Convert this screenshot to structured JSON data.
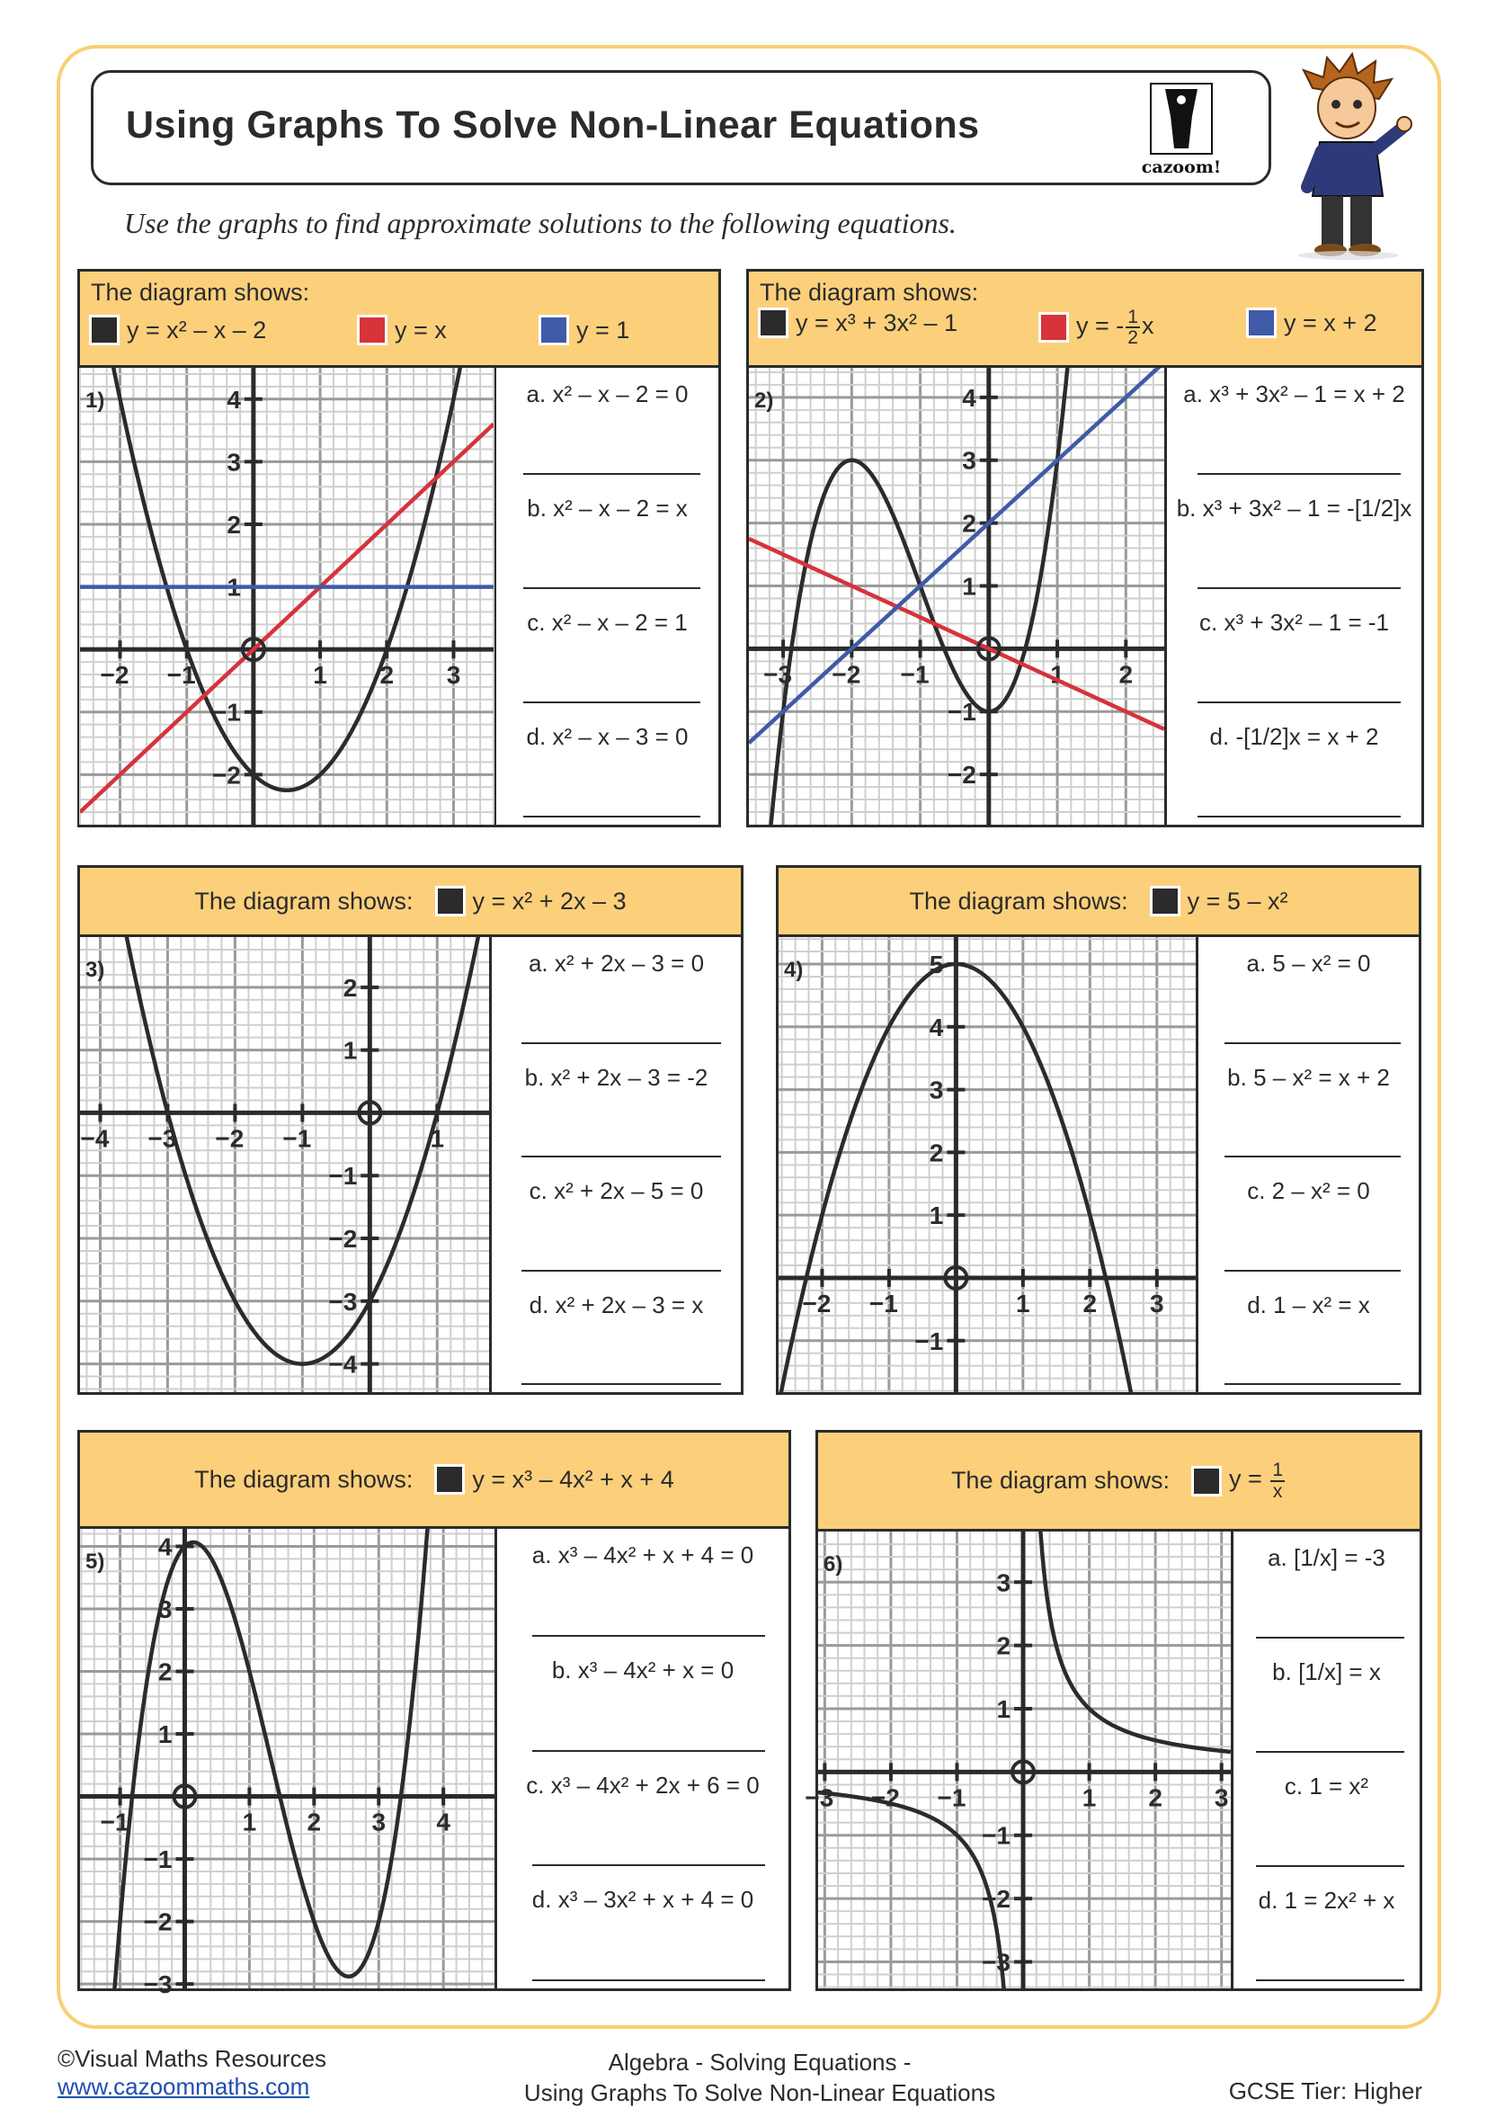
{
  "header": {
    "title": "Using Graphs To Solve Non-Linear Equations",
    "logo_text": "cazoom!",
    "instruction": "Use the graphs to find approximate solutions to the following equations."
  },
  "colors": {
    "border": "#f8cf73",
    "header_bg": "#fcd07b",
    "black_curve": "#2b2b2b",
    "red_line": "#d6333a",
    "blue_line": "#3f5ba8"
  },
  "panels": [
    {
      "number": "1)",
      "shows": "The diagram shows:",
      "legend": [
        "y = x² – x – 2",
        "y = x",
        "y = 1"
      ],
      "questions": [
        "a.  x² – x – 2 = 0",
        "b.  x² – x – 2 = x",
        "c.  x² – x – 2 = 1",
        "d.  x² – x – 3 = 0"
      ]
    },
    {
      "number": "2)",
      "shows": "The diagram shows:",
      "legend": [
        "y = x³ + 3x² – 1",
        "y = -[1/2]x",
        "y = x + 2"
      ],
      "questions": [
        "a. x³ + 3x² – 1 = x + 2",
        "b. x³ + 3x² – 1 = -[1/2]x",
        "c. x³ + 3x² – 1 = -1",
        "d. -[1/2]x = x + 2"
      ]
    },
    {
      "number": "3)",
      "shows": "The diagram shows:",
      "legend": [
        "y = x² + 2x – 3"
      ],
      "questions": [
        "a. x² + 2x – 3 = 0",
        "b. x² + 2x – 3 = -2",
        "c. x² + 2x – 5 = 0",
        "d. x² + 2x – 3 = x"
      ]
    },
    {
      "number": "4)",
      "shows": "The diagram shows:",
      "legend": [
        "y = 5 – x²"
      ],
      "questions": [
        "a.  5 – x² = 0",
        "b.  5 – x² = x + 2",
        "c.  2 – x² = 0",
        "d.  1 – x² = x"
      ]
    },
    {
      "number": "5)",
      "shows": "The diagram shows:",
      "legend": [
        "y = x³ – 4x² + x + 4"
      ],
      "questions": [
        "a. x³ – 4x² + x + 4 = 0",
        "b. x³ – 4x² + x = 0",
        "c. x³ – 4x² + 2x + 6 = 0",
        "d. x³ – 3x² + x + 4 = 0"
      ]
    },
    {
      "number": "6)",
      "shows": "The diagram shows:",
      "legend": [
        "y = [1/x]"
      ],
      "questions": [
        "a.  [1/x] = -3",
        "b.  [1/x] = x",
        "c.  1 = x²",
        "d.  1 = 2x² + x"
      ]
    }
  ],
  "chart_data": [
    {
      "type": "line",
      "xlim": [
        -2.6,
        3.6
      ],
      "ylim": [
        -2.8,
        4.5
      ],
      "grid": true,
      "minor_step": 0.2,
      "x_ticks": [
        -2,
        -1,
        1,
        2,
        3
      ],
      "y_ticks": [
        4,
        3,
        2,
        1,
        -1,
        -2
      ],
      "series": [
        {
          "name": "y = x² – x – 2",
          "kind": "poly",
          "coeffs": [
            -2,
            -1,
            1
          ],
          "color": "#2b2b2b"
        },
        {
          "name": "y = x",
          "kind": "poly",
          "coeffs": [
            0,
            1
          ],
          "color": "#d6333a"
        },
        {
          "name": "y = 1",
          "kind": "poly",
          "coeffs": [
            1
          ],
          "color": "#3f5ba8"
        }
      ]
    },
    {
      "type": "line",
      "xlim": [
        -3.5,
        2.56
      ],
      "ylim": [
        -2.8,
        4.47
      ],
      "grid": true,
      "minor_step": 0.2,
      "x_ticks": [
        -3,
        -2,
        -1,
        1,
        2
      ],
      "y_ticks": [
        4,
        3,
        2,
        1,
        -1,
        -2
      ],
      "series": [
        {
          "name": "y = x³ + 3x² – 1",
          "kind": "poly",
          "coeffs": [
            -1,
            0,
            3,
            1
          ],
          "color": "#2b2b2b"
        },
        {
          "name": "y = -1/2x",
          "kind": "poly",
          "coeffs": [
            0,
            -0.5
          ],
          "color": "#d6333a"
        },
        {
          "name": "y = x + 2",
          "kind": "poly",
          "coeffs": [
            2,
            1
          ],
          "color": "#3f5ba8"
        }
      ]
    },
    {
      "type": "line",
      "xlim": [
        -4.3,
        1.77
      ],
      "ylim": [
        -4.45,
        2.8
      ],
      "grid": true,
      "minor_step": 0.2,
      "x_ticks": [
        -4,
        -3,
        -2,
        -1,
        1
      ],
      "y_ticks": [
        2,
        1,
        -1,
        -2,
        -3,
        -4
      ],
      "series": [
        {
          "name": "y = x² + 2x – 3",
          "kind": "poly",
          "coeffs": [
            -3,
            2,
            1
          ],
          "color": "#2b2b2b"
        }
      ]
    },
    {
      "type": "line",
      "xlim": [
        -2.65,
        3.58
      ],
      "ylim": [
        -1.82,
        5.43
      ],
      "grid": true,
      "minor_step": 0.2,
      "x_ticks": [
        -2,
        -1,
        1,
        2,
        3
      ],
      "y_ticks": [
        5,
        4,
        3,
        2,
        1,
        -1
      ],
      "series": [
        {
          "name": "y = 5 – x²",
          "kind": "poly",
          "coeffs": [
            5,
            0,
            -1
          ],
          "color": "#2b2b2b"
        }
      ]
    },
    {
      "type": "line",
      "xlim": [
        -1.62,
        4.79
      ],
      "ylim": [
        -3.07,
        4.28
      ],
      "grid": true,
      "minor_step": 0.2,
      "x_ticks": [
        -1,
        1,
        2,
        3,
        4
      ],
      "y_ticks": [
        4,
        3,
        2,
        1,
        -1,
        -2,
        -3
      ],
      "series": [
        {
          "name": "y = x³ – 4x² + x + 4",
          "kind": "poly",
          "coeffs": [
            4,
            1,
            -4,
            1
          ],
          "color": "#2b2b2b"
        }
      ]
    },
    {
      "type": "line",
      "xlim": [
        -3.1,
        3.14
      ],
      "ylim": [
        -3.42,
        3.8
      ],
      "grid": true,
      "minor_step": 0.2,
      "x_ticks": [
        -3,
        -2,
        -1,
        1,
        2,
        3
      ],
      "y_ticks": [
        3,
        2,
        1,
        -1,
        -2,
        -3
      ],
      "series": [
        {
          "name": "y = 1/x",
          "kind": "reciprocal",
          "color": "#2b2b2b"
        }
      ]
    }
  ],
  "footer": {
    "copyright": "©Visual Maths Resources",
    "link": "www.cazoommaths.com",
    "topic_line1": "Algebra - Solving Equations -",
    "topic_line2": "Using Graphs To Solve Non-Linear Equations",
    "tier": "GCSE Tier: Higher"
  }
}
